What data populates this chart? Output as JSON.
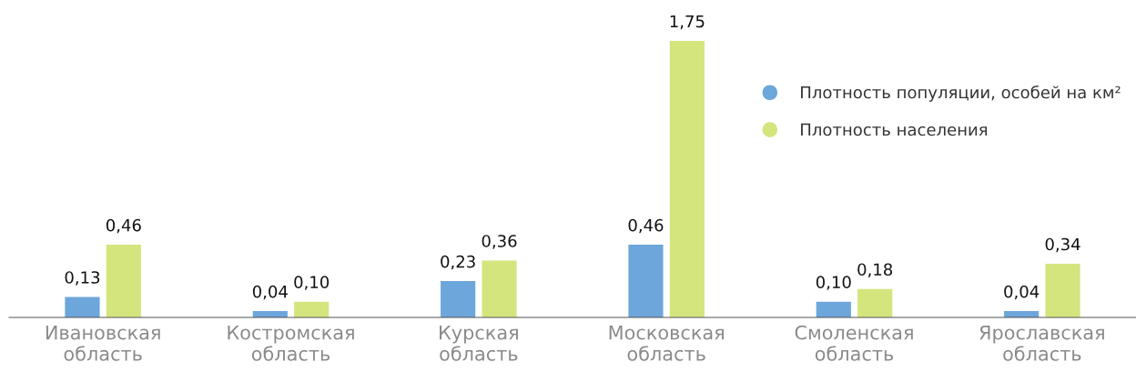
{
  "chart_data": {
    "type": "bar",
    "categories": [
      "Ивановская\nобласть",
      "Костромская\nобласть",
      "Курская\nобласть",
      "Московская\nобласть",
      "Смоленская\nобласть",
      "Ярославская\nобласть"
    ],
    "series": [
      {
        "name": "Плотность популяции, особей на км²",
        "color": "#6ca6da",
        "values": [
          0.13,
          0.04,
          0.23,
          0.46,
          0.1,
          0.04
        ],
        "value_labels": [
          "0,13",
          "0,04",
          "0,23",
          "0,46",
          "0,10",
          "0,04"
        ]
      },
      {
        "name": "Плотность населения",
        "color": "#d4e57d",
        "values": [
          0.46,
          0.1,
          0.36,
          1.75,
          0.18,
          0.34
        ],
        "value_labels": [
          "0,46",
          "0,10",
          "0,36",
          "1,75",
          "0,18",
          "0,34"
        ]
      }
    ],
    "legend": "top right",
    "grid": false,
    "marker": "circle"
  }
}
